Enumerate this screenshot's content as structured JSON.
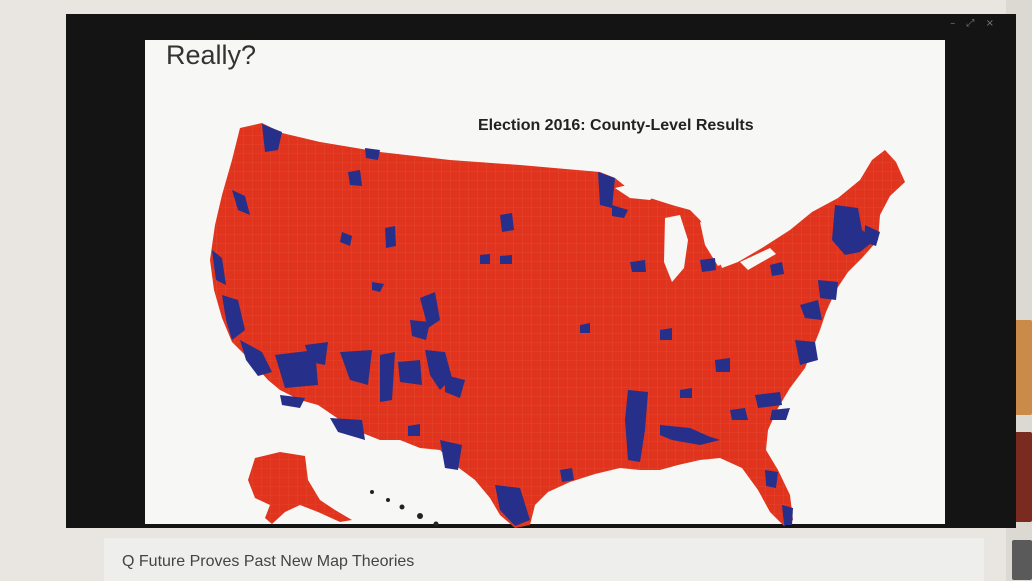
{
  "slide": {
    "title": "Really?"
  },
  "map": {
    "title": "Election 2016: County-Level Results",
    "colors": {
      "republican": "#e0341e",
      "democrat": "#262f8a",
      "background": "#f7f7f5",
      "county_border": "#ef6a48"
    }
  },
  "caption": {
    "text": "Q Future Proves Past New Map Theories"
  },
  "window_controls": {
    "text": "– ⤢ ×"
  }
}
